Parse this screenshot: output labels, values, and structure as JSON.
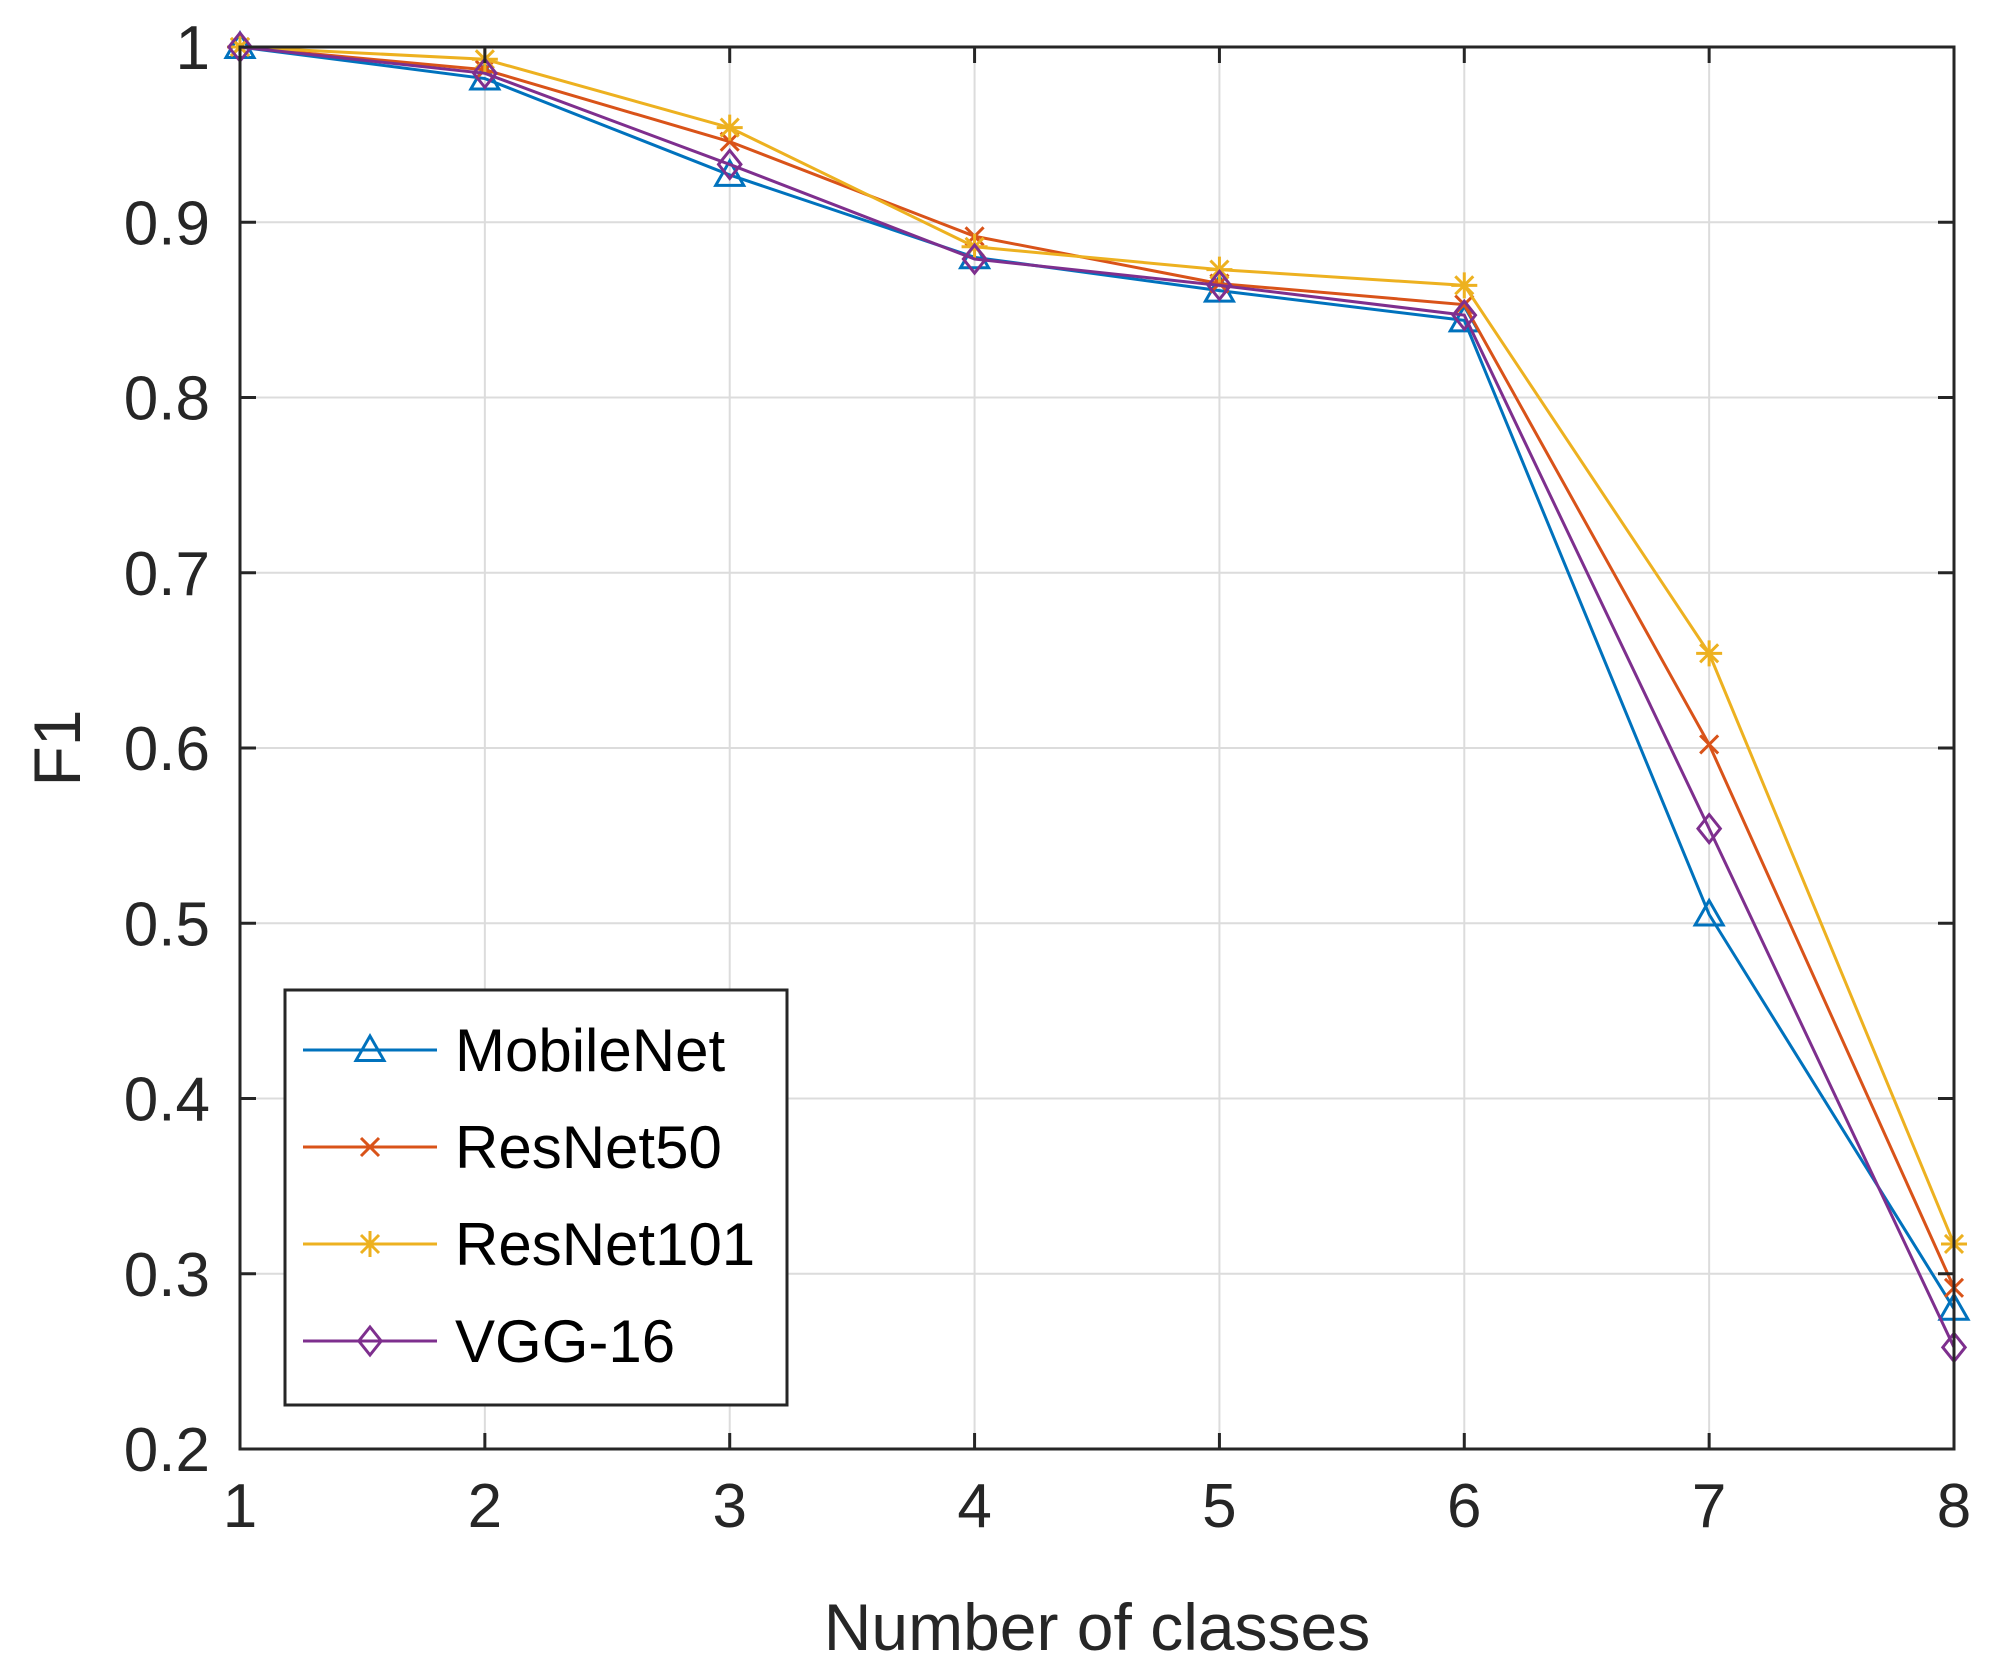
{
  "chart_data": {
    "type": "line",
    "title": "",
    "xlabel": "Number of classes",
    "ylabel": "F1",
    "x": [
      1,
      2,
      3,
      4,
      5,
      6,
      7,
      8
    ],
    "xlim": [
      1,
      8
    ],
    "ylim": [
      0.2,
      1.0
    ],
    "xticks": [
      1,
      2,
      3,
      4,
      5,
      6,
      7,
      8
    ],
    "yticks": [
      0.2,
      0.3,
      0.4,
      0.5,
      0.6,
      0.7,
      0.8,
      0.9,
      1.0
    ],
    "xtick_labels": [
      "1",
      "2",
      "3",
      "4",
      "5",
      "6",
      "7",
      "8"
    ],
    "ytick_labels": [
      "0.2",
      "0.3",
      "0.4",
      "0.5",
      "0.6",
      "0.7",
      "0.8",
      "0.9",
      "1"
    ],
    "grid": true,
    "legend_location": "lower-left",
    "series": [
      {
        "name": "MobileNet",
        "marker": "triangle",
        "color": "#0072BD",
        "values": [
          1.0,
          0.982,
          0.927,
          0.88,
          0.861,
          0.844,
          0.505,
          0.28
        ]
      },
      {
        "name": "ResNet50",
        "marker": "x",
        "color": "#D95319",
        "values": [
          1.0,
          0.987,
          0.946,
          0.892,
          0.865,
          0.853,
          0.602,
          0.292
        ]
      },
      {
        "name": "ResNet101",
        "marker": "asterisk",
        "color": "#EDB120",
        "values": [
          1.0,
          0.993,
          0.954,
          0.886,
          0.873,
          0.864,
          0.654,
          0.317
        ]
      },
      {
        "name": "VGG-16",
        "marker": "diamond",
        "color": "#7E2F8E",
        "values": [
          1.0,
          0.985,
          0.933,
          0.879,
          0.864,
          0.847,
          0.554,
          0.258
        ]
      }
    ]
  }
}
